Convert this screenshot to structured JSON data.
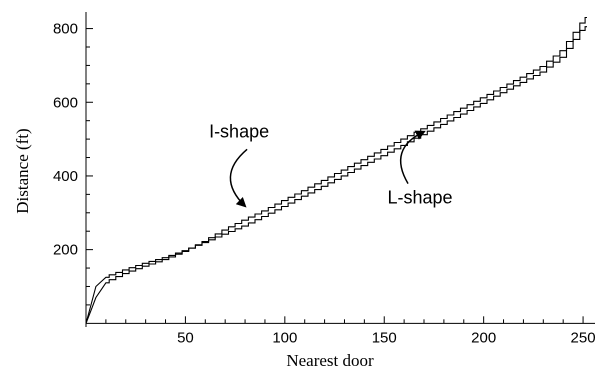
{
  "chart_data": {
    "type": "line",
    "xlabel": "Nearest door",
    "ylabel": "Distance (ft)",
    "xlim": [
      0,
      256
    ],
    "ylim": [
      -10,
      845
    ],
    "x_ticks": [
      50,
      100,
      150,
      200,
      250
    ],
    "y_ticks": [
      200,
      400,
      600,
      800
    ],
    "grid": false,
    "series": [
      {
        "name": "I-shape",
        "x": [
          0,
          5,
          10,
          20,
          30,
          40,
          50,
          60,
          70,
          80,
          90,
          100,
          110,
          120,
          130,
          140,
          150,
          160,
          170,
          180,
          190,
          200,
          210,
          220,
          230,
          240,
          250,
          252
        ],
        "y": [
          0,
          100,
          125,
          145,
          163,
          178,
          197,
          219,
          242,
          264,
          290,
          317,
          345,
          372,
          400,
          428,
          455,
          483,
          512,
          540,
          568,
          597,
          626,
          654,
          682,
          722,
          795,
          805
        ]
      },
      {
        "name": "L-shape",
        "x": [
          0,
          5,
          10,
          20,
          30,
          40,
          50,
          60,
          70,
          80,
          90,
          100,
          110,
          120,
          130,
          140,
          150,
          160,
          170,
          180,
          190,
          200,
          210,
          220,
          230,
          240,
          250,
          252
        ],
        "y": [
          0,
          70,
          110,
          135,
          155,
          173,
          195,
          222,
          253,
          280,
          305,
          333,
          360,
          388,
          416,
          444,
          472,
          500,
          528,
          556,
          584,
          612,
          640,
          668,
          697,
          740,
          815,
          830
        ]
      }
    ],
    "annotations": [
      {
        "text": "I-shape",
        "x": 77,
        "y": 505,
        "arrow_to": [
          80,
          318
        ],
        "rad": 0.55
      },
      {
        "text": "L-shape",
        "x": 168,
        "y": 325,
        "arrow_to": [
          170,
          520
        ],
        "rad": -0.55
      }
    ]
  }
}
